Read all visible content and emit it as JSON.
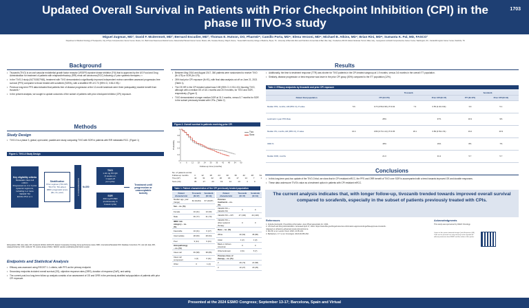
{
  "poster": {
    "title": "Updated Overall Survival in Patients with Prior Checkpoint Inhibition (CPI) in the phase III TIVO-3 study",
    "number": "1703",
    "authors": "Miguel Zugman, MD¹; David F. McDermott, MD²; Bernard Escudier, MD³; Thomas E. Hutson, DO, PharmD⁴; Camillo Porta, MD⁵; Elena Verzoni, MD⁶; Michael B. Atkins, MD⁷; Brian Rini, MD⁸; Sumanta K. Pal, MD, FASCO¹",
    "affiliations": "¹Department of Medical Oncology & Therapeutics, City of Hope Comprehensive Cancer Center, Duarte, CA; ²Beth Israel Deaconess Medical Center, Dana-Farber/Harvard Cancer Center, Boston, MA; ³Gustave Roussy, Villejuif, France; ⁴Texas A&M University College of Medicine, Bryan, TX; ⁵University of Bari Aldo Moro and Policlinico Consorziale di Bari, Bari, Italy; ⁶Fondazione IRCCS Istituto Nazionale Tumori, Milan, Italy; ⁷Georgetown Lombardi Comprehensive Cancer Center, Washington, DC; ⁸Vanderbilt-Ingram Cancer Center, Nashville, TN",
    "footer": "Presented at the 2024 ESMO Congress; September 13-17; Barcelona, Spain and Virtual"
  },
  "background": {
    "heading": "Background",
    "bullets": [
      "Tivozanib (TIVO) is an oral vascular endothelial growth factor receptor (VEGFR) tyrosine kinase inhibitor (TKI) that is approved by the US Food and Drug Administration for treatment of patients with relapsed/refractory (R/R) renal cell carcinoma (RCC) following ≥2 prior systemic therapies.¹·²",
      "In the TIVO-3 study (NCT02627963), treatment with TIVO demonstrated a significantly improved independent review committee-assessed progression-free survival (PFS) compared to those treated with sorafenib (SORA), with a stratified HR of 0.73 (95% CI, 0.56-0.95).³",
      "Previous long-term PFS data indicated that patients free of disease progression at the 12-month landmark were three (adequately) durable benefit from tivozanib.⁴",
      "In the present analysis, we sought to update outcomes of the subset of patients with prior checkpoint inhibitor (CPI) exposure."
    ]
  },
  "methods": {
    "heading": "Methods",
    "design_title": "Study Design",
    "design_bullet": "TIVO-3 is a phase 3, global, open-label, parallel-arm study comparing TIVO with SOR in patients with R/R metastatic RCC. (Figure 1)",
    "figure_label": "Figure 1. TIVO-3 Study Design",
    "eligibility": {
      "title": "Key eligibility criteria",
      "items": [
        "Metastatic clear cell mRCC",
        "Progressed on 2 or 3 prior systemic regimens, including 1 or more VEGFR TKI",
        "ECOG PS 0 or 1"
      ]
    },
    "strat": {
      "title": "Stratification",
      "items": [
        "Prior regimen (TKI-CPI, TKI-TKI, TKI-other)",
        "IMDC prognostic score (fav, int, poor)"
      ]
    },
    "randomization": "RANDOMIZATION 1:1",
    "n": "N=350",
    "tivo_arm": {
      "title": "TIVO",
      "lines": [
        "1.34 mg PO QD",
        "(3 weeks on,",
        "1 week off",
        "per cycle)"
      ]
    },
    "sor_arm": {
      "title": "SOR",
      "lines": [
        "400 mg PO BID",
        "(continuously in",
        "4-week cycle)"
      ]
    },
    "treatment": "Treatment until progression or unacceptable toxicity",
    "fig_footnote": "Abbreviations: BID, twice daily; CPI, checkpoint inhibitor; ECOG PS, Eastern Cooperative Oncology Group performance status; IMDC, International Metastatic RCC Database Consortium; PO, oral; QD, daily; R/R, relapsed/refractory; SOR, sorafenib; TKI, tyrosine kinase inhibitor; VEGFR, vascular endothelial growth factor receptor.",
    "endpoints_title": "Endpoints and Statistical Analysis",
    "endpoints_bullets": [
      "Efficacy was assessed using RECIST 1.1 criteria, with PFS as the primary endpoint.",
      "Secondary endpoints included overall survival (OS), objective response rates (ORR), duration of response (DoR), and safety.",
      "The current post-hoc long-term follow up analysis consists of an assessment of OS and ORR in the previously stratified subpopulation of patients with prior CPI exposure."
    ]
  },
  "results": {
    "heading": "Results",
    "bullets": [
      "Between May 2016 and August 2017, 350 patients were randomized to receive TIVO (N=175) or SOR (N=175).",
      "26% had prior CPI exposure (N=91), with final data analysis cut off on June 21, 2021 (Table 1).",
      "The OS HR in the CPI-treated subset was 0.89 (95% CI, 0.53-1.51) favoring TIVO, although with a median OS of 18.1 months and 20.9 months, for TIVO and SOR, respectively. (Figure 2)",
      "TIVO demonstrated a longer median DOR at 31.2 months, versus 5.7 months for SOR in the subset previously treated with CPIs. (Table 2)"
    ],
    "figure_label": "Figure 2. Overall survival in patients receiving prior CPI",
    "risk_label": "No. of patients at risk:",
    "fu_label": "Follow-up months",
    "risk_rows": [
      {
        "label": "Tivo (47)",
        "values": [
          "42",
          "31",
          "22",
          "20",
          "16",
          "17",
          "14",
          "7",
          "1"
        ]
      },
      {
        "label": "Sora (44)",
        "values": [
          "35",
          "27",
          "23",
          "19",
          "14",
          "13",
          "4",
          "0",
          ""
        ]
      }
    ],
    "risk_months": [
      "4",
      "12",
      "18",
      "24",
      "30",
      "36",
      "42",
      "48",
      "54"
    ],
    "right_bullets": [
      "Additionally, the time to treatment response (TTR) was shorter for TIVO patients in the CPI-treated subgroup at 1.9 months, versus 3.6 months in the overall ITT population.",
      "Similarly, disease progression or best response was lower in the prior CPI group (50%) compared to the ITT population (12%)."
    ]
  },
  "chart_data": {
    "type": "line",
    "title": "",
    "xlabel": "Follow-up time (months)",
    "ylabel": "Probability",
    "xlim": [
      0,
      60
    ],
    "ylim": [
      0,
      1
    ],
    "x_ticks": [
      0,
      6,
      12,
      18,
      24,
      30,
      36,
      42,
      48,
      54,
      60
    ],
    "y_ticks": [
      0,
      0.2,
      0.4,
      0.6,
      0.8,
      1
    ],
    "legend_position": "right",
    "series": [
      {
        "name": "Tivo",
        "color": "#8a8a8a",
        "x": [
          0,
          2,
          4,
          6,
          8,
          10,
          12,
          14,
          16,
          18,
          20,
          22,
          24,
          26,
          28,
          30,
          32,
          34,
          36,
          38,
          40,
          42,
          44,
          46,
          48,
          50,
          52,
          54
        ],
        "y": [
          1,
          0.96,
          0.9,
          0.82,
          0.74,
          0.66,
          0.6,
          0.56,
          0.54,
          0.5,
          0.47,
          0.44,
          0.42,
          0.41,
          0.4,
          0.38,
          0.37,
          0.36,
          0.35,
          0.34,
          0.33,
          0.32,
          0.3,
          0.28,
          0.26,
          0.24,
          0.22,
          0.2
        ]
      },
      {
        "name": "Sora",
        "color": "#d63a2a",
        "x": [
          0,
          2,
          4,
          6,
          8,
          10,
          12,
          14,
          16,
          18,
          20,
          22,
          24,
          26,
          28,
          30,
          32,
          34,
          36,
          38,
          40,
          42,
          44,
          46,
          48
        ],
        "y": [
          1,
          0.95,
          0.9,
          0.84,
          0.78,
          0.72,
          0.64,
          0.6,
          0.56,
          0.54,
          0.51,
          0.48,
          0.44,
          0.4,
          0.37,
          0.35,
          0.33,
          0.3,
          0.27,
          0.25,
          0.22,
          0.2,
          0.18,
          0.16,
          0.14
        ]
      }
    ]
  },
  "table1": {
    "label": "Table 1. Patient characteristics of the CPI previously treated population",
    "left_headers": [
      "Patient characteristic",
      "Tivozanib (N=47)",
      "Sorafenib (N=44)"
    ],
    "left_rows": [
      [
        "Median age, year (range)",
        "62 (34-84)",
        "67 (40-87)"
      ],
      [
        "Sex – no. (%)",
        "",
        ""
      ],
      [
        "Female",
        "10 (21)",
        "13 (30)"
      ],
      [
        "Male",
        "36 (77)",
        "31 (70)"
      ],
      [
        "IMDC risk category – no. (%)",
        "",
        ""
      ],
      [
        "Favorable",
        "10 (21)",
        "6 (17)"
      ],
      [
        "Intermediate",
        "28 (60)",
        "28 (64)"
      ],
      [
        "Poor",
        "9 (11)",
        "9 (21)"
      ],
      [
        "Histopathology – no. (%)",
        "",
        ""
      ],
      [
        "Clear cell",
        "46 (98)",
        "38 (86)"
      ],
      [
        "Clear cell component",
        "1 (2)",
        "6 (11)"
      ],
      [
        "Other",
        "0",
        "1 (2)"
      ]
    ],
    "right_headers": [
      "Patient characteristic",
      "Tivozanib (N=47)",
      "Sorafenib (N=44)"
    ],
    "right_rows": [
      [
        "Previous treatments – no. (%)",
        "",
        ""
      ],
      [
        "VEGFR-TKI + VEGFR-TKI",
        "0",
        "0"
      ],
      [
        "VEGFR-TKI + CPI",
        "47 (100)",
        "44 (100)"
      ],
      [
        "VEGFR-TKI + other systemic therapy",
        "0",
        "0"
      ],
      [
        "Race – no. (%)",
        "",
        ""
      ],
      [
        "White",
        "43 (92)",
        "38 (86)"
      ],
      [
        "Asian",
        "1 (2)",
        "1 (2)"
      ],
      [
        "Black or African American",
        "0",
        "0"
      ],
      [
        "Other/unknown",
        "3 (6)",
        "5 (7)"
      ],
      [
        "Previous lines of therapy – no. (%)",
        "",
        ""
      ],
      [
        "2",
        "29 (72)",
        "23 (58)"
      ],
      [
        "3",
        "13 (27)",
        "18 (35)"
      ]
    ]
  },
  "table2": {
    "label": "Table 2. Efficacy endpoints by tivozanib and prior CPI exposure",
    "group_tivo": "Tivozanib",
    "group_sora": "Sorafenib",
    "col_headers": [
      "Patient final population",
      "",
      "ITT (N=175)",
      "Prior CPI (N=47)",
      "ITT (N=175)",
      "Prior CPI (N=44)"
    ],
    "rows": [
      [
        "Median PFS, months, HR (95% CI), P-value",
        "5.6",
        "0.73 (0.56-0.95), P=0.02",
        "7.3",
        "0.55 (0.32-0.94)",
        "3.9",
        "5.1"
      ],
      [
        "Landmark 1-year PFS Rate",
        "",
        "28%",
        "",
        "37%",
        "11%",
        "9%"
      ],
      [
        "Median OS, months, HR (95% CI), P-value",
        "16.4",
        "0.89 (0.70-1.14), P=0.35",
        "18.1",
        "0.89 (0.53-1.51)",
        "19.2",
        "20.9"
      ],
      [
        "ORR %",
        "",
        "18%",
        "",
        "16%",
        "8%",
        "7%"
      ],
      [
        "Median DOR, months",
        "",
        "21.0",
        "",
        "31.2",
        "5.7",
        "5.7"
      ]
    ]
  },
  "conclusions": {
    "heading": "Conclusions",
    "bullets": [
      "In this long-term post-hoc update of the TIVO-3 trial, we show that in CPI resistant mRCC, the PFS and ORR benefit of TIVO over SOR is accompanied with a trend towards improved OS and durable responses.",
      "These data underscore TIVO's value as a treatment option in patients with CPI resistant mRCC."
    ],
    "highlight": "The current analysis indicates that, with longer follow-up, tivozanib trended towards improved overall survival compared to sorafenib, especially in the subset of patients previously treated with CPIs."
  },
  "references": {
    "heading": "References",
    "items": [
      "1. Fotivda (tivozanib). Prescribing information. Aveo Pharmaceuticals Inc; 2021.",
      "2. US Food and Drug Administration. Accessed April 17, 2024. https://www.fda.gov/drugs/resources-information-approved-drugs/fda-approves-tivozanib-relapsed-or-refractory-advanced-renal-cell-carcinoma",
      "3. Rini BI, et al. Lancet Oncol. 2020; 21:95-104.",
      "4. Barbartson, K.T. et al. Oncologist. 2024;29:256-262."
    ]
  },
  "acknowledgments": {
    "heading": "Acknowledgments",
    "text": "This study was sponsored by AVEO Oncology.",
    "qr_note": "Copies of this poster obtained through Quick Response (QR) Code are for personal use only and may not be reproduced without permission from ESMO and the author of this poster."
  }
}
